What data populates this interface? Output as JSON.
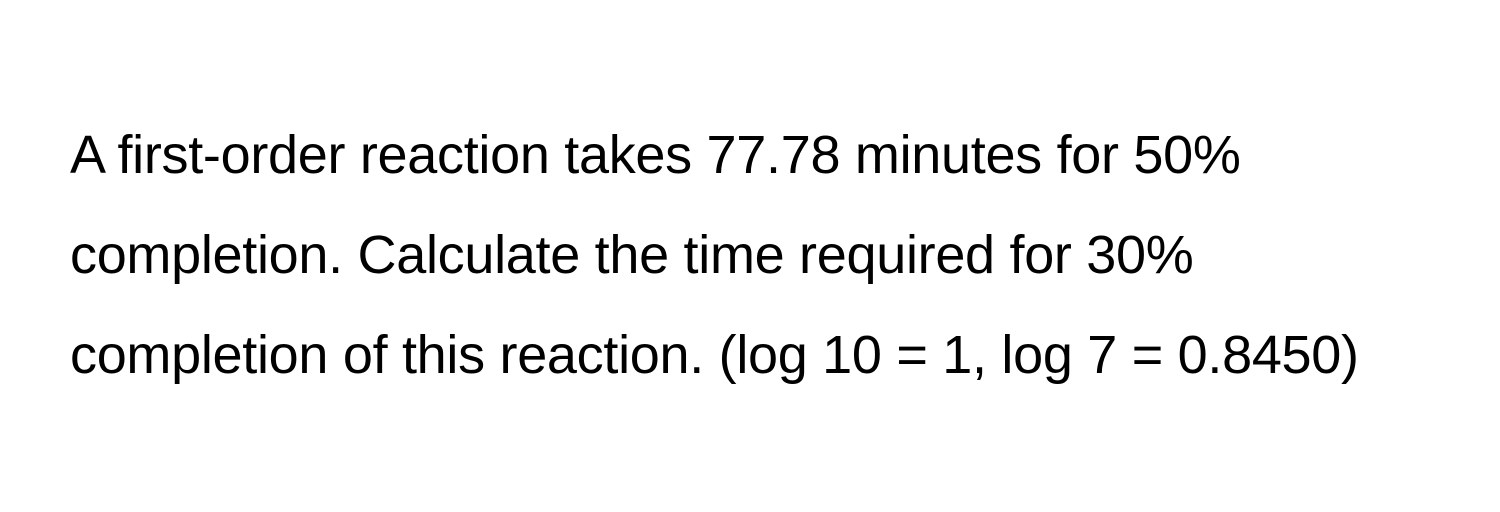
{
  "question": {
    "text": "A first-order reaction takes 77.78 minutes for 50% completion. Calculate the time required for 30% completion of this reaction. (log 10 = 1, log 7 = 0.8450)",
    "fontsize": 54,
    "line_height": 1.85,
    "color": "#000000",
    "background_color": "#ffffff",
    "font_weight": 400
  }
}
